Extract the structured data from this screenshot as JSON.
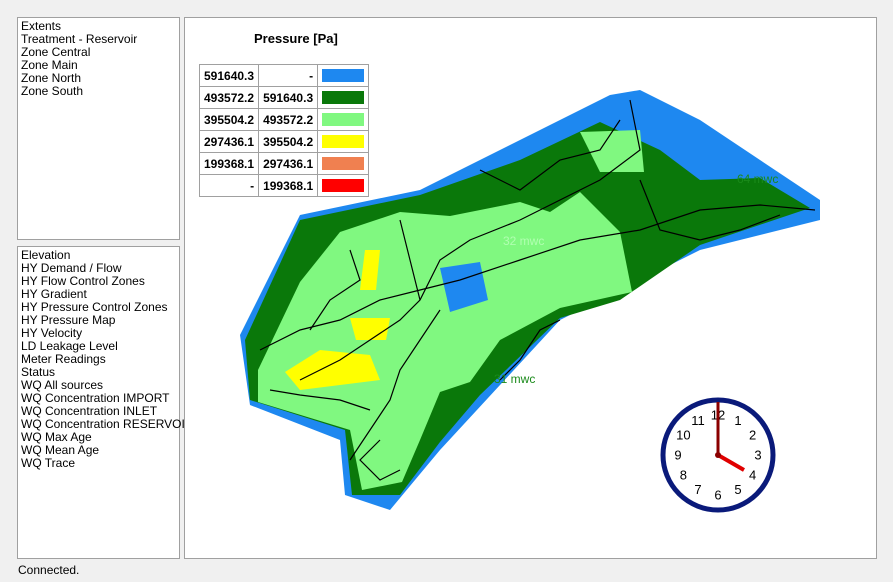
{
  "extents": {
    "items": [
      "Extents",
      "Treatment - Reservoir",
      "Zone Central",
      "Zone Main",
      "Zone North",
      "Zone South"
    ]
  },
  "layers": {
    "items": [
      "Elevation",
      "HY Demand / Flow",
      "HY Flow Control Zones",
      "HY Gradient",
      "HY Pressure Control Zones",
      "HY Pressure Map",
      "HY Velocity",
      "LD Leakage Level",
      "Meter Readings",
      "Status",
      "WQ All sources",
      "WQ Concentration IMPORT",
      "WQ Concentration INLET",
      "WQ Concentration RESERVOIR",
      "WQ Max Age",
      "WQ Mean Age",
      "WQ Trace"
    ]
  },
  "legend": {
    "title": "Pressure [Pa]",
    "rows": [
      {
        "from": "591640.3",
        "to": "-",
        "color": "#1e88f0"
      },
      {
        "from": "493572.2",
        "to": "591640.3",
        "color": "#0a780a"
      },
      {
        "from": "395504.2",
        "to": "493572.2",
        "color": "#80f880"
      },
      {
        "from": "297436.1",
        "to": "395504.2",
        "color": "#ffff00"
      },
      {
        "from": "199368.1",
        "to": "297436.1",
        "color": "#f08050"
      },
      {
        "from": "-",
        "to": "199368.1",
        "color": "#ff0000"
      }
    ]
  },
  "map": {
    "labels": [
      "64 mwc",
      "32 mwc",
      "31 mwc"
    ]
  },
  "clock": {
    "numbers": [
      "12",
      "1",
      "2",
      "3",
      "4",
      "5",
      "6",
      "7",
      "8",
      "9",
      "10",
      "11"
    ]
  },
  "status": "Connected."
}
